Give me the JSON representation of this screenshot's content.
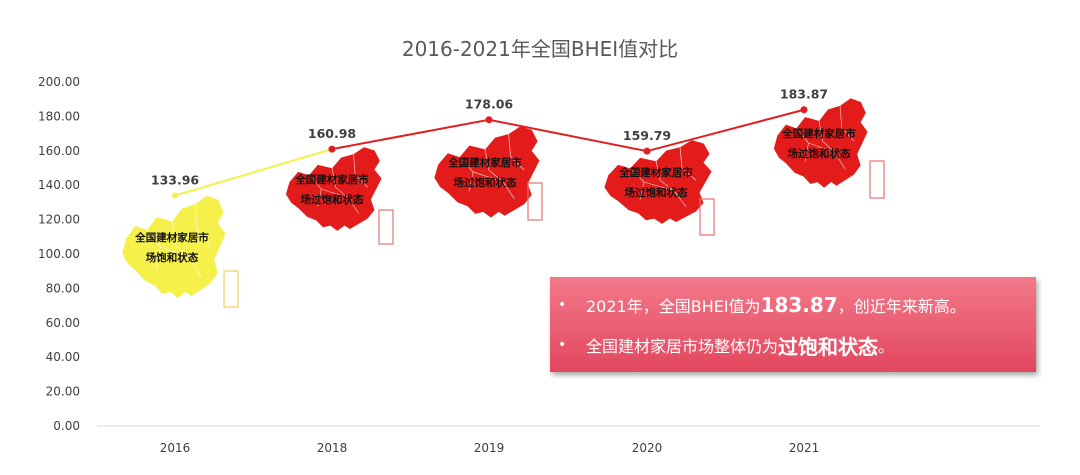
{
  "chart_data": {
    "type": "line",
    "title": "2016-2021年全国BHEI值对比",
    "categories": [
      "2016",
      "2018",
      "2019",
      "2020",
      "2021"
    ],
    "values": [
      133.96,
      160.98,
      178.06,
      159.79,
      183.87
    ],
    "value_labels": [
      "133.96",
      "160.98",
      "178.06",
      "159.79",
      "183.87"
    ],
    "ylim": [
      0,
      200
    ],
    "yticks": [
      "0.00",
      "20.00",
      "40.00",
      "60.00",
      "80.00",
      "100.00",
      "120.00",
      "140.00",
      "160.00",
      "180.00",
      "200.00"
    ],
    "colors": {
      "first_segment": "#f5f04a",
      "line": "#e02020",
      "map_first": "#f5f04a",
      "map_other": "#e31b1b"
    },
    "map_labels": [
      [
        "全国建材家居市",
        "场饱和状态"
      ],
      [
        "全国建材家居市",
        "场过饱和状态"
      ],
      [
        "全国建材家居市",
        "场过饱和状态"
      ],
      [
        "全国建材家居市",
        "场过饱和状态"
      ],
      [
        "全国建材家居市",
        "场过饱和状态"
      ]
    ]
  },
  "callout": {
    "bullet": "•",
    "line1_prefix": "2021年，全国BHEI值为",
    "line1_value": "183.87",
    "line1_suffix": "，创近年来新高。",
    "line2_prefix": "全国建材家居市场整体仍为",
    "line2_emph": "过饱和状态",
    "line2_suffix": "。"
  }
}
